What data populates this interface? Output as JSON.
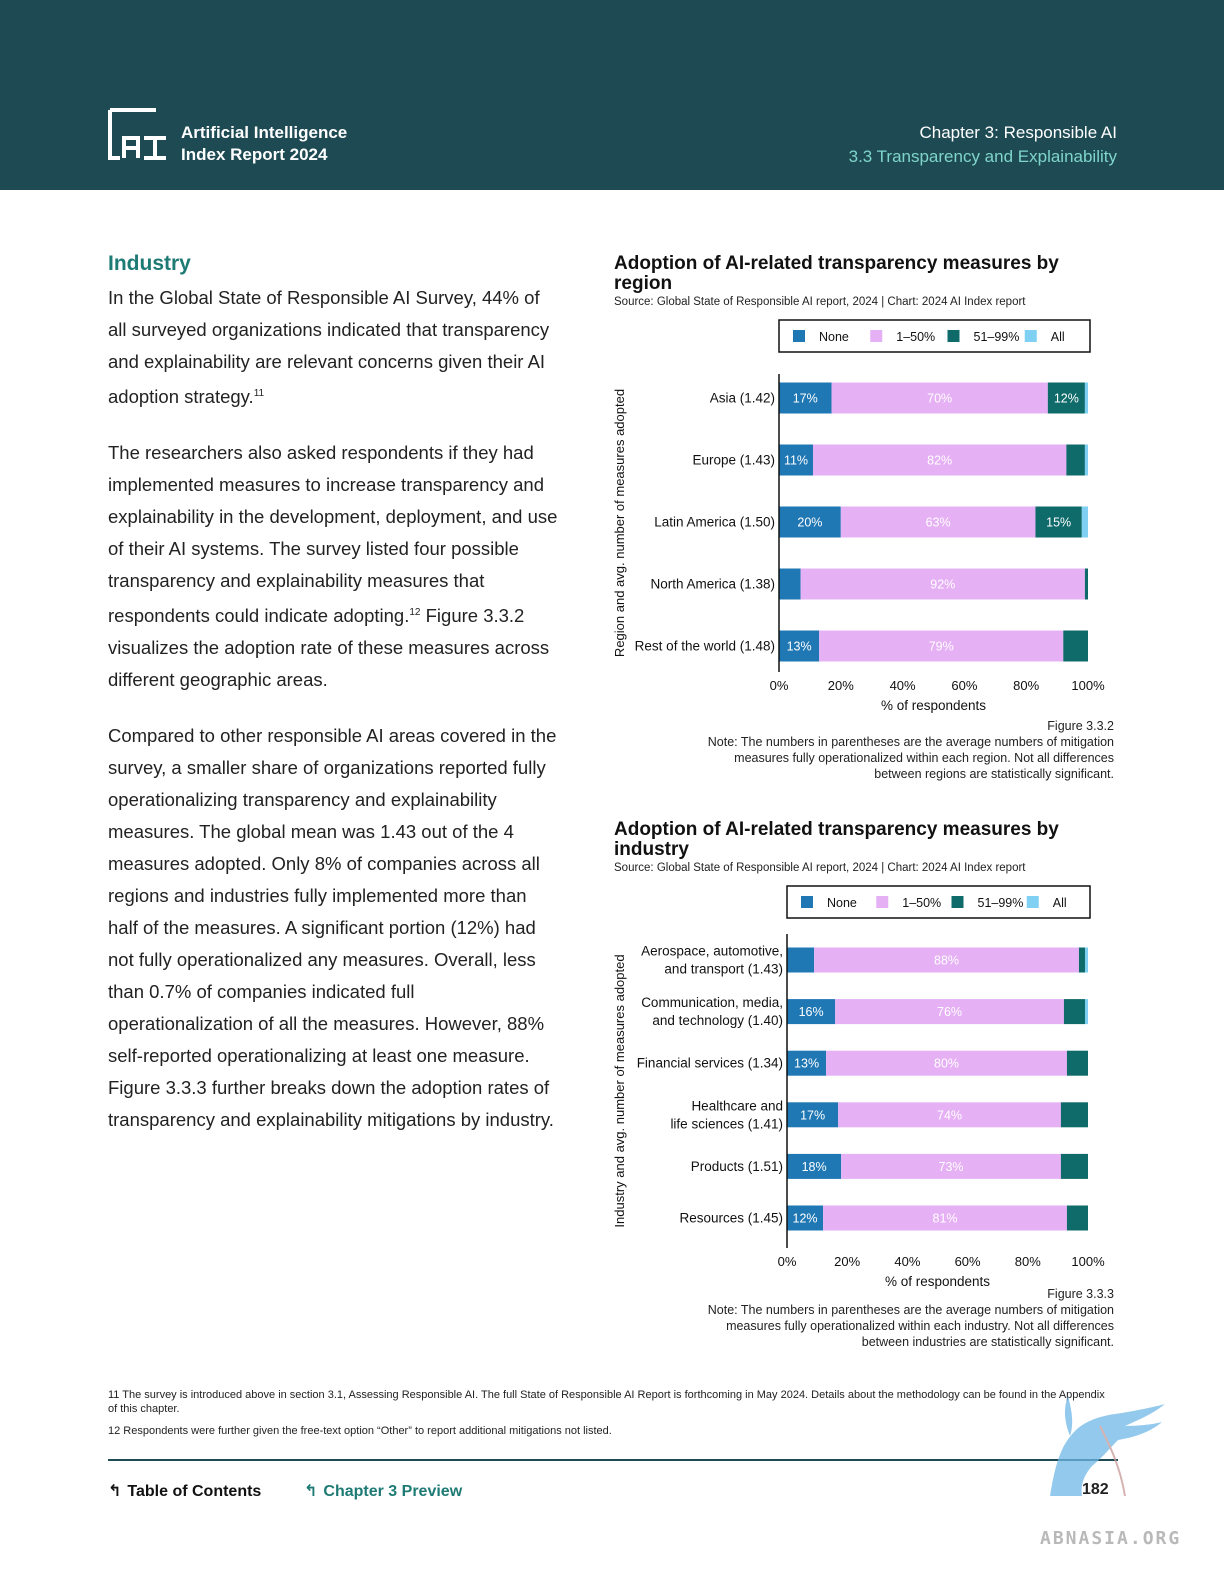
{
  "header": {
    "brand_line1": "Artificial Intelligence",
    "brand_line2": "Index Report 2024",
    "chapter_line1": "Chapter 3: Responsible AI",
    "chapter_line2": "3.3 Transparency and Explainability"
  },
  "body": {
    "section_title": "Industry",
    "para1": "In the Global State of Responsible AI Survey, 44% of all surveyed organizations indicated that transparency and explainability are relevant concerns given their AI adoption strategy.",
    "para1_sup": "11",
    "para2": "The researchers also asked respondents if they had implemented measures to increase transparency and explainability in the development, deployment, and use of their AI systems. The survey listed four possible transparency and explainability measures that respondents could indicate adopting.",
    "para2_sup": "12",
    "para2_tail": " Figure 3.3.2 visualizes the adoption rate of these measures across different geographic areas.",
    "para3": "Compared to other responsible AI areas covered in the survey, a smaller share of organizations reported fully operationalizing transparency and explainability measures. The global mean was 1.43 out of the 4 measures adopted. Only 8% of companies across all regions and industries fully implemented more than half of the measures. A significant portion (12%) had not fully operationalized any measures. Overall, less than 0.7% of companies indicated full operationalization of all the measures. However, 88% self-reported operationalizing at least one measure. Figure 3.3.3 further breaks down the adoption rates of transparency and explainability mitigations by industry."
  },
  "colors": {
    "header_bg": "#1e4b53",
    "teal_text": "#1e7a74",
    "none": "#1f77b4",
    "p1_50": "#e6b0f5",
    "p51_99": "#0f6a6a",
    "all": "#7fd0f2"
  },
  "chart_data": [
    {
      "type": "bar",
      "orientation": "horizontal",
      "stacked": true,
      "title": "Adoption of AI-related transparency measures by region",
      "source": "Source: Global State of Responsible AI report, 2024 | Chart: 2024 AI Index report",
      "xlabel": "% of respondents",
      "ylabel": "Region and avg. number of measures adopted",
      "xlim": [
        0,
        100
      ],
      "xticks": [
        "0%",
        "20%",
        "40%",
        "60%",
        "80%",
        "100%"
      ],
      "legend_position": "top",
      "categories": [
        "Asia (1.42)",
        "Europe (1.43)",
        "Latin America (1.50)",
        "North America (1.38)",
        "Rest of the world (1.48)"
      ],
      "series": [
        {
          "name": "None",
          "values": [
            17,
            11,
            20,
            7,
            13
          ],
          "labels": [
            "17%",
            "11%",
            "20%",
            "",
            "13%"
          ]
        },
        {
          "name": "1–50%",
          "values": [
            70,
            82,
            63,
            92,
            79
          ],
          "labels": [
            "70%",
            "82%",
            "63%",
            "92%",
            "79%"
          ]
        },
        {
          "name": "51–99%",
          "values": [
            12,
            6,
            15,
            1,
            8
          ],
          "labels": [
            "12%",
            "",
            "15%",
            "",
            ""
          ]
        },
        {
          "name": "All",
          "values": [
            1,
            1,
            2,
            0,
            0
          ],
          "labels": [
            "",
            "",
            "",
            "",
            ""
          ]
        }
      ],
      "figure": "Figure 3.3.2",
      "note": "Note: The numbers in parentheses are the average numbers of mitigation measures fully operationalized within each region. Not all differences between regions are statistically significant."
    },
    {
      "type": "bar",
      "orientation": "horizontal",
      "stacked": true,
      "title": "Adoption of AI-related transparency measures by industry",
      "source": "Source: Global State of Responsible AI report, 2024 | Chart: 2024 AI Index report",
      "xlabel": "% of respondents",
      "ylabel": "Industry and avg. number of measures adopted",
      "xlim": [
        0,
        100
      ],
      "xticks": [
        "0%",
        "20%",
        "40%",
        "60%",
        "80%",
        "100%"
      ],
      "legend_position": "top",
      "categories": [
        [
          "Aerospace, automotive,",
          "and transport (1.43)"
        ],
        [
          "Communication, media,",
          "and technology (1.40)"
        ],
        [
          "Financial services (1.34)"
        ],
        [
          "Healthcare and",
          "life sciences (1.41)"
        ],
        [
          "Products (1.51)"
        ],
        [
          "Resources (1.45)"
        ]
      ],
      "series": [
        {
          "name": "None",
          "values": [
            9,
            16,
            13,
            17,
            18,
            12
          ],
          "labels": [
            "",
            "16%",
            "13%",
            "17%",
            "18%",
            "12%"
          ]
        },
        {
          "name": "1–50%",
          "values": [
            88,
            76,
            80,
            74,
            73,
            81
          ],
          "labels": [
            "88%",
            "76%",
            "80%",
            "74%",
            "73%",
            "81%"
          ]
        },
        {
          "name": "51–99%",
          "values": [
            2,
            7,
            7,
            9,
            9,
            7
          ],
          "labels": [
            "",
            "",
            "",
            "",
            "",
            ""
          ]
        },
        {
          "name": "All",
          "values": [
            1,
            1,
            0,
            0,
            0,
            0
          ],
          "labels": [
            "",
            "",
            "",
            "",
            "",
            ""
          ]
        }
      ],
      "figure": "Figure 3.3.3",
      "note": "Note: The numbers in parentheses are the average numbers of mitigation measures fully operationalized within each industry. Not all differences between industries are statistically significant."
    }
  ],
  "footnotes": {
    "fn11": "11 The survey is introduced above in section 3.1, Assessing Responsible AI. The full State of Responsible AI Report is forthcoming in May 2024. Details about the methodology can be found in the Appendix of this chapter.",
    "fn12": "12 Respondents were further given the free-text option “Other” to report additional mitigations not listed."
  },
  "footer": {
    "toc_label": "Table of Contents",
    "chapter_label": "Chapter 3 Preview",
    "page_number": "182",
    "watermark": "ABNASIA.ORG"
  }
}
